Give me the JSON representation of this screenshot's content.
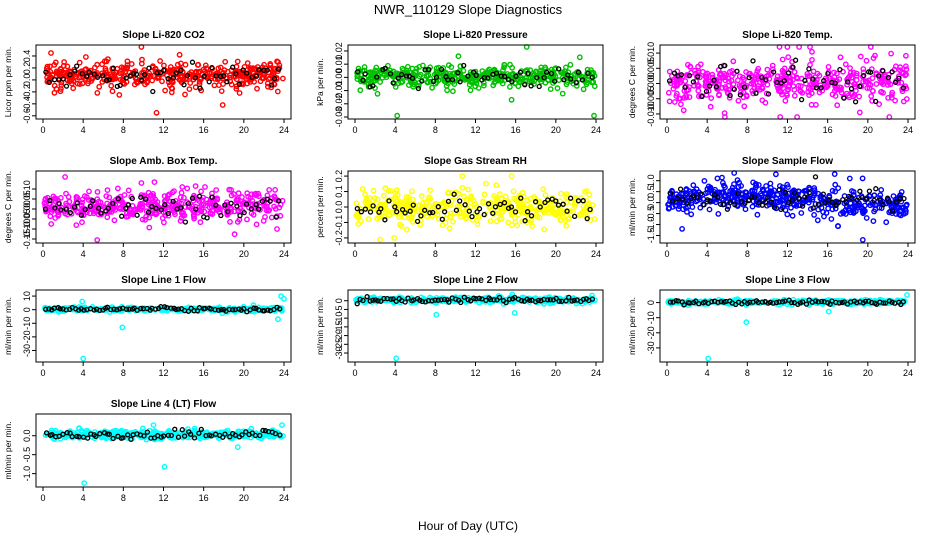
{
  "figure": {
    "title": "NWR_110129  Slope Diagnostics",
    "xlabel": "Hour of Day (UTC)"
  },
  "chart_data": [
    {
      "type": "scatter",
      "title": "Slope Li-820 CO2",
      "ylabel": "Licor ppm per min.",
      "xlim": [
        0,
        24
      ],
      "xticks": [
        0,
        4,
        8,
        12,
        16,
        20,
        24
      ],
      "ylim": [
        -0.62,
        0.55
      ],
      "yticks": [
        -0.6,
        -0.4,
        -0.2,
        0.0,
        0.2,
        0.4
      ],
      "ytick_labels": [
        "-0.6",
        "-0.4",
        "-0.2",
        "0.0",
        "0.2",
        "0.4"
      ],
      "color": "#ff0000",
      "center": 0.08,
      "spread": 0.13,
      "drift": 0,
      "n": 420,
      "nblack": 60,
      "outliers": [
        [
          0.8,
          0.45
        ],
        [
          2.1,
          0.3
        ],
        [
          7.6,
          -0.25
        ],
        [
          9.8,
          0.55
        ],
        [
          11.3,
          -0.55
        ],
        [
          13.6,
          0.42
        ],
        [
          17.9,
          -0.42
        ],
        [
          23.4,
          0.3
        ]
      ]
    },
    {
      "type": "scatter",
      "title": "Slope Li-820 Pressure",
      "ylabel": "kPa per min.",
      "xlim": [
        0,
        24
      ],
      "xticks": [
        0,
        4,
        8,
        12,
        16,
        20,
        24
      ],
      "ylim": [
        -0.03,
        0.023
      ],
      "yticks": [
        -0.03,
        -0.02,
        -0.01,
        0.0,
        0.01,
        0.02
      ],
      "ytick_labels": [
        "-0.03",
        "-0.02",
        "-0.01",
        "0.00",
        "0.01",
        "0.02"
      ],
      "color": "#00c000",
      "center": 0.0005,
      "spread": 0.0045,
      "drift": 0,
      "n": 420,
      "nblack": 60,
      "outliers": [
        [
          17.1,
          0.023
        ],
        [
          4.2,
          -0.029
        ],
        [
          23.8,
          -0.029
        ],
        [
          15.6,
          -0.017
        ],
        [
          10.3,
          0.016
        ]
      ]
    },
    {
      "type": "scatter",
      "title": "Slope Li-820 Temp.",
      "ylabel": "degrees C per min.",
      "xlim": [
        0,
        24
      ],
      "xticks": [
        0,
        4,
        8,
        12,
        16,
        20,
        24
      ],
      "ylim": [
        -0.011,
        0.012
      ],
      "yticks": [
        -0.01,
        -0.005,
        0.0,
        0.005,
        0.01
      ],
      "ytick_labels": [
        "-0.010",
        "-0.005",
        "0.000",
        "0.005",
        "0.010"
      ],
      "color": "#ff00ff",
      "center": 0.0005,
      "spread": 0.0042,
      "drift": 0,
      "n": 420,
      "nblack": 60,
      "outliers": [
        [
          11.2,
          0.012
        ],
        [
          20.3,
          0.012
        ],
        [
          7.7,
          -0.0075
        ],
        [
          19.2,
          -0.0095
        ],
        [
          14.4,
          -0.007
        ]
      ]
    },
    {
      "type": "scatter",
      "title": "Slope Amb. Box Temp.",
      "ylabel": "degrees C per min.",
      "xlim": [
        0,
        24
      ],
      "xticks": [
        0,
        4,
        8,
        12,
        16,
        20,
        24
      ],
      "ylim": [
        -0.16,
        0.18
      ],
      "yticks": [
        -0.15,
        -0.1,
        -0.05,
        0.0,
        0.05,
        0.1
      ],
      "ytick_labels": [
        "-0.15",
        "-0.10",
        "-0.05",
        "0.00",
        "0.05",
        "0.10"
      ],
      "color": "#ff00ff",
      "center": 0.015,
      "spread": 0.045,
      "drift": 0,
      "n": 420,
      "nblack": 60,
      "outliers": [
        [
          2.2,
          0.16
        ],
        [
          5.4,
          -0.155
        ],
        [
          23.3,
          -0.1
        ],
        [
          9.8,
          0.13
        ]
      ]
    },
    {
      "type": "scatter",
      "title": "Slope Gas Stream RH",
      "ylabel": "percent per min.",
      "xlim": [
        0,
        24
      ],
      "xticks": [
        0,
        4,
        8,
        12,
        16,
        20,
        24
      ],
      "ylim": [
        -0.22,
        0.22
      ],
      "yticks": [
        -0.2,
        -0.1,
        0.0,
        0.1,
        0.2
      ],
      "ytick_labels": [
        "-0.2",
        "-0.1",
        "0.0",
        "0.1",
        "0.2"
      ],
      "color": "#ffff00",
      "center": 0.0,
      "spread": 0.065,
      "drift": 0,
      "n": 420,
      "nblack": 60,
      "outliers": [
        [
          2.5,
          -0.21
        ],
        [
          15.6,
          0.2
        ],
        [
          3.9,
          -0.2
        ],
        [
          10.7,
          0.2
        ]
      ]
    },
    {
      "type": "scatter",
      "title": "Slope Sample Flow",
      "ylabel": "ml/min per min.",
      "xlim": [
        0,
        24
      ],
      "xticks": [
        0,
        4,
        8,
        12,
        16,
        20,
        24
      ],
      "ylim": [
        -1.75,
        1.35
      ],
      "yticks": [
        -1.5,
        -1.0,
        -0.5,
        0.0,
        0.5,
        1.0
      ],
      "ytick_labels": [
        "-1.5",
        "-1.0",
        "-0.5",
        "0.0",
        "0.5",
        "1.0"
      ],
      "color": "#0000ff",
      "center": 0.1,
      "spread": 0.38,
      "drift": 0.25,
      "n": 460,
      "nblack": 70,
      "outliers": [
        [
          16.7,
          1.3
        ],
        [
          19.5,
          -1.7
        ],
        [
          1.5,
          -1.2
        ],
        [
          18.2,
          1.1
        ]
      ]
    },
    {
      "type": "scatter",
      "title": "Slope Line 1 Flow",
      "ylabel": "ml/min per min.",
      "xlim": [
        0,
        24
      ],
      "xticks": [
        0,
        4,
        8,
        12,
        16,
        20,
        24
      ],
      "ylim": [
        -37,
        13
      ],
      "yticks": [
        -30,
        -20,
        -10,
        0,
        10
      ],
      "ytick_labels": [
        "-30",
        "-20",
        "-10",
        "0",
        "10"
      ],
      "color": "#00ffff",
      "center": 0.3,
      "spread": 0.9,
      "drift": 0,
      "n": 300,
      "nblack": 80,
      "outliers": [
        [
          4.0,
          -36
        ],
        [
          7.9,
          -13
        ],
        [
          3.9,
          6
        ],
        [
          23.4,
          -7
        ],
        [
          23.7,
          10
        ],
        [
          24.0,
          8
        ]
      ]
    },
    {
      "type": "scatter",
      "title": "Slope Line 2 Flow",
      "ylabel": "ml/min per min.",
      "xlim": [
        0,
        24
      ],
      "xticks": [
        0,
        4,
        8,
        12,
        16,
        20,
        24
      ],
      "ylim": [
        -34,
        5
      ],
      "yticks": [
        -30,
        -25,
        -20,
        -15,
        -10,
        -5,
        0
      ],
      "ytick_labels": [
        "-30",
        "-25",
        "-20",
        "-15",
        "-10",
        "-5",
        "0"
      ],
      "color": "#00ffff",
      "center": 0.4,
      "spread": 0.9,
      "drift": 0,
      "n": 300,
      "nblack": 80,
      "outliers": [
        [
          4.1,
          -33
        ],
        [
          8.1,
          -8
        ],
        [
          15.9,
          -7
        ],
        [
          23.6,
          3
        ]
      ]
    },
    {
      "type": "scatter",
      "title": "Slope Line 3 Flow",
      "ylabel": "ml/min per min.",
      "xlim": [
        0,
        24
      ],
      "xticks": [
        0,
        4,
        8,
        12,
        16,
        20,
        24
      ],
      "ylim": [
        -38,
        7
      ],
      "yticks": [
        -30,
        -20,
        -10,
        0
      ],
      "ytick_labels": [
        "-30",
        "-20",
        "-10",
        "0"
      ],
      "color": "#00ffff",
      "center": 0.3,
      "spread": 0.9,
      "drift": 0,
      "n": 300,
      "nblack": 80,
      "outliers": [
        [
          4.1,
          -37
        ],
        [
          7.9,
          -13
        ],
        [
          16.1,
          -6
        ],
        [
          23.9,
          5
        ]
      ]
    },
    {
      "type": "scatter",
      "title": "Slope Line 4 (LT) Flow",
      "ylabel": "ml/min per min.",
      "xlim": [
        0,
        24
      ],
      "xticks": [
        0,
        4,
        8,
        12,
        16,
        20,
        24
      ],
      "ylim": [
        -1.3,
        0.52
      ],
      "yticks": [
        -1.0,
        -0.5,
        0.0
      ],
      "ytick_labels": [
        "-1.0",
        "-0.5",
        "0.0"
      ],
      "color": "#00ffff",
      "center": 0.03,
      "spread": 0.07,
      "drift": 0,
      "n": 420,
      "nblack": 70,
      "outliers": [
        [
          4.1,
          -1.25
        ],
        [
          12.1,
          -0.82
        ],
        [
          11.0,
          0.28
        ],
        [
          23.8,
          0.28
        ],
        [
          19.4,
          -0.3
        ]
      ]
    }
  ]
}
